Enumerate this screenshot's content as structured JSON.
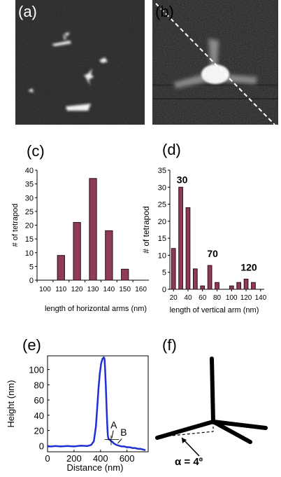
{
  "panels": {
    "a": "(a)",
    "b": "(b)",
    "c": "(c)",
    "d": "(d)",
    "e": "(e)",
    "f": "(f)"
  },
  "colors": {
    "bar_fill": "#8e3a59",
    "bar_stroke": "#2a0f1a",
    "line_blue": "#1f2fd6",
    "afm_dark": "#1c1c1c"
  },
  "chart_data": [
    {
      "id": "c",
      "type": "bar",
      "categories": [
        "100",
        "110",
        "120",
        "130",
        "140",
        "150",
        "160"
      ],
      "values": [
        0,
        9,
        21,
        37,
        18,
        4,
        0
      ],
      "xlabel": "length of horizontal arms (nm)",
      "ylabel": "# of tetrapod",
      "ylim": [
        0,
        40
      ],
      "yticks": [
        "0",
        "5",
        "10",
        "15",
        "20",
        "25",
        "30",
        "35",
        "40"
      ],
      "grid": false
    },
    {
      "id": "d",
      "type": "bar",
      "x": [
        20,
        30,
        40,
        50,
        60,
        70,
        80,
        90,
        100,
        110,
        120,
        130,
        140
      ],
      "values": [
        12,
        30,
        24,
        6,
        1,
        7,
        2,
        0,
        1,
        2,
        3,
        2,
        0
      ],
      "xticks": [
        "20",
        "40",
        "60",
        "80",
        "100",
        "120",
        "140"
      ],
      "xlabel": "length of vertical arm (nm)",
      "ylabel": "# of tetrapod",
      "ylim": [
        0,
        35
      ],
      "yticks": [
        "0",
        "5",
        "10",
        "15",
        "20",
        "25",
        "30",
        "35"
      ],
      "annotations": [
        "30",
        "70",
        "120"
      ],
      "grid": false
    },
    {
      "id": "e",
      "type": "line",
      "xlabel": "Distance (nm)",
      "ylabel": "Height (nm)",
      "xlim": [
        0,
        760
      ],
      "ylim": [
        -8,
        118
      ],
      "xticks": [
        "0",
        "200",
        "400",
        "600"
      ],
      "yticks": [
        "0",
        "20",
        "40",
        "60",
        "80",
        "100"
      ],
      "series": [
        {
          "x": [
            0,
            30,
            60,
            100,
            150,
            200,
            250,
            300,
            330,
            350,
            365,
            375,
            385,
            395,
            405,
            415,
            420,
            425,
            430,
            435,
            440,
            445,
            450,
            455,
            460,
            465,
            470,
            475,
            480,
            490,
            500,
            520,
            540,
            560,
            580,
            600,
            620,
            640,
            660,
            680,
            700,
            720,
            740
          ],
          "y": [
            -1,
            -1,
            -0.5,
            -1,
            -0.5,
            -1,
            0,
            -0.5,
            1,
            6,
            25,
            50,
            75,
            95,
            108,
            114,
            115,
            116,
            114,
            100,
            78,
            55,
            30,
            14,
            9,
            8,
            8,
            7,
            6,
            5,
            3,
            1,
            0,
            -1,
            -1,
            -2,
            -2,
            -3,
            -3,
            -4,
            -4,
            -5,
            -6
          ]
        }
      ],
      "annotations": [
        "A",
        "B"
      ]
    }
  ],
  "diagram_f": {
    "angle_label": "α = 4º"
  }
}
